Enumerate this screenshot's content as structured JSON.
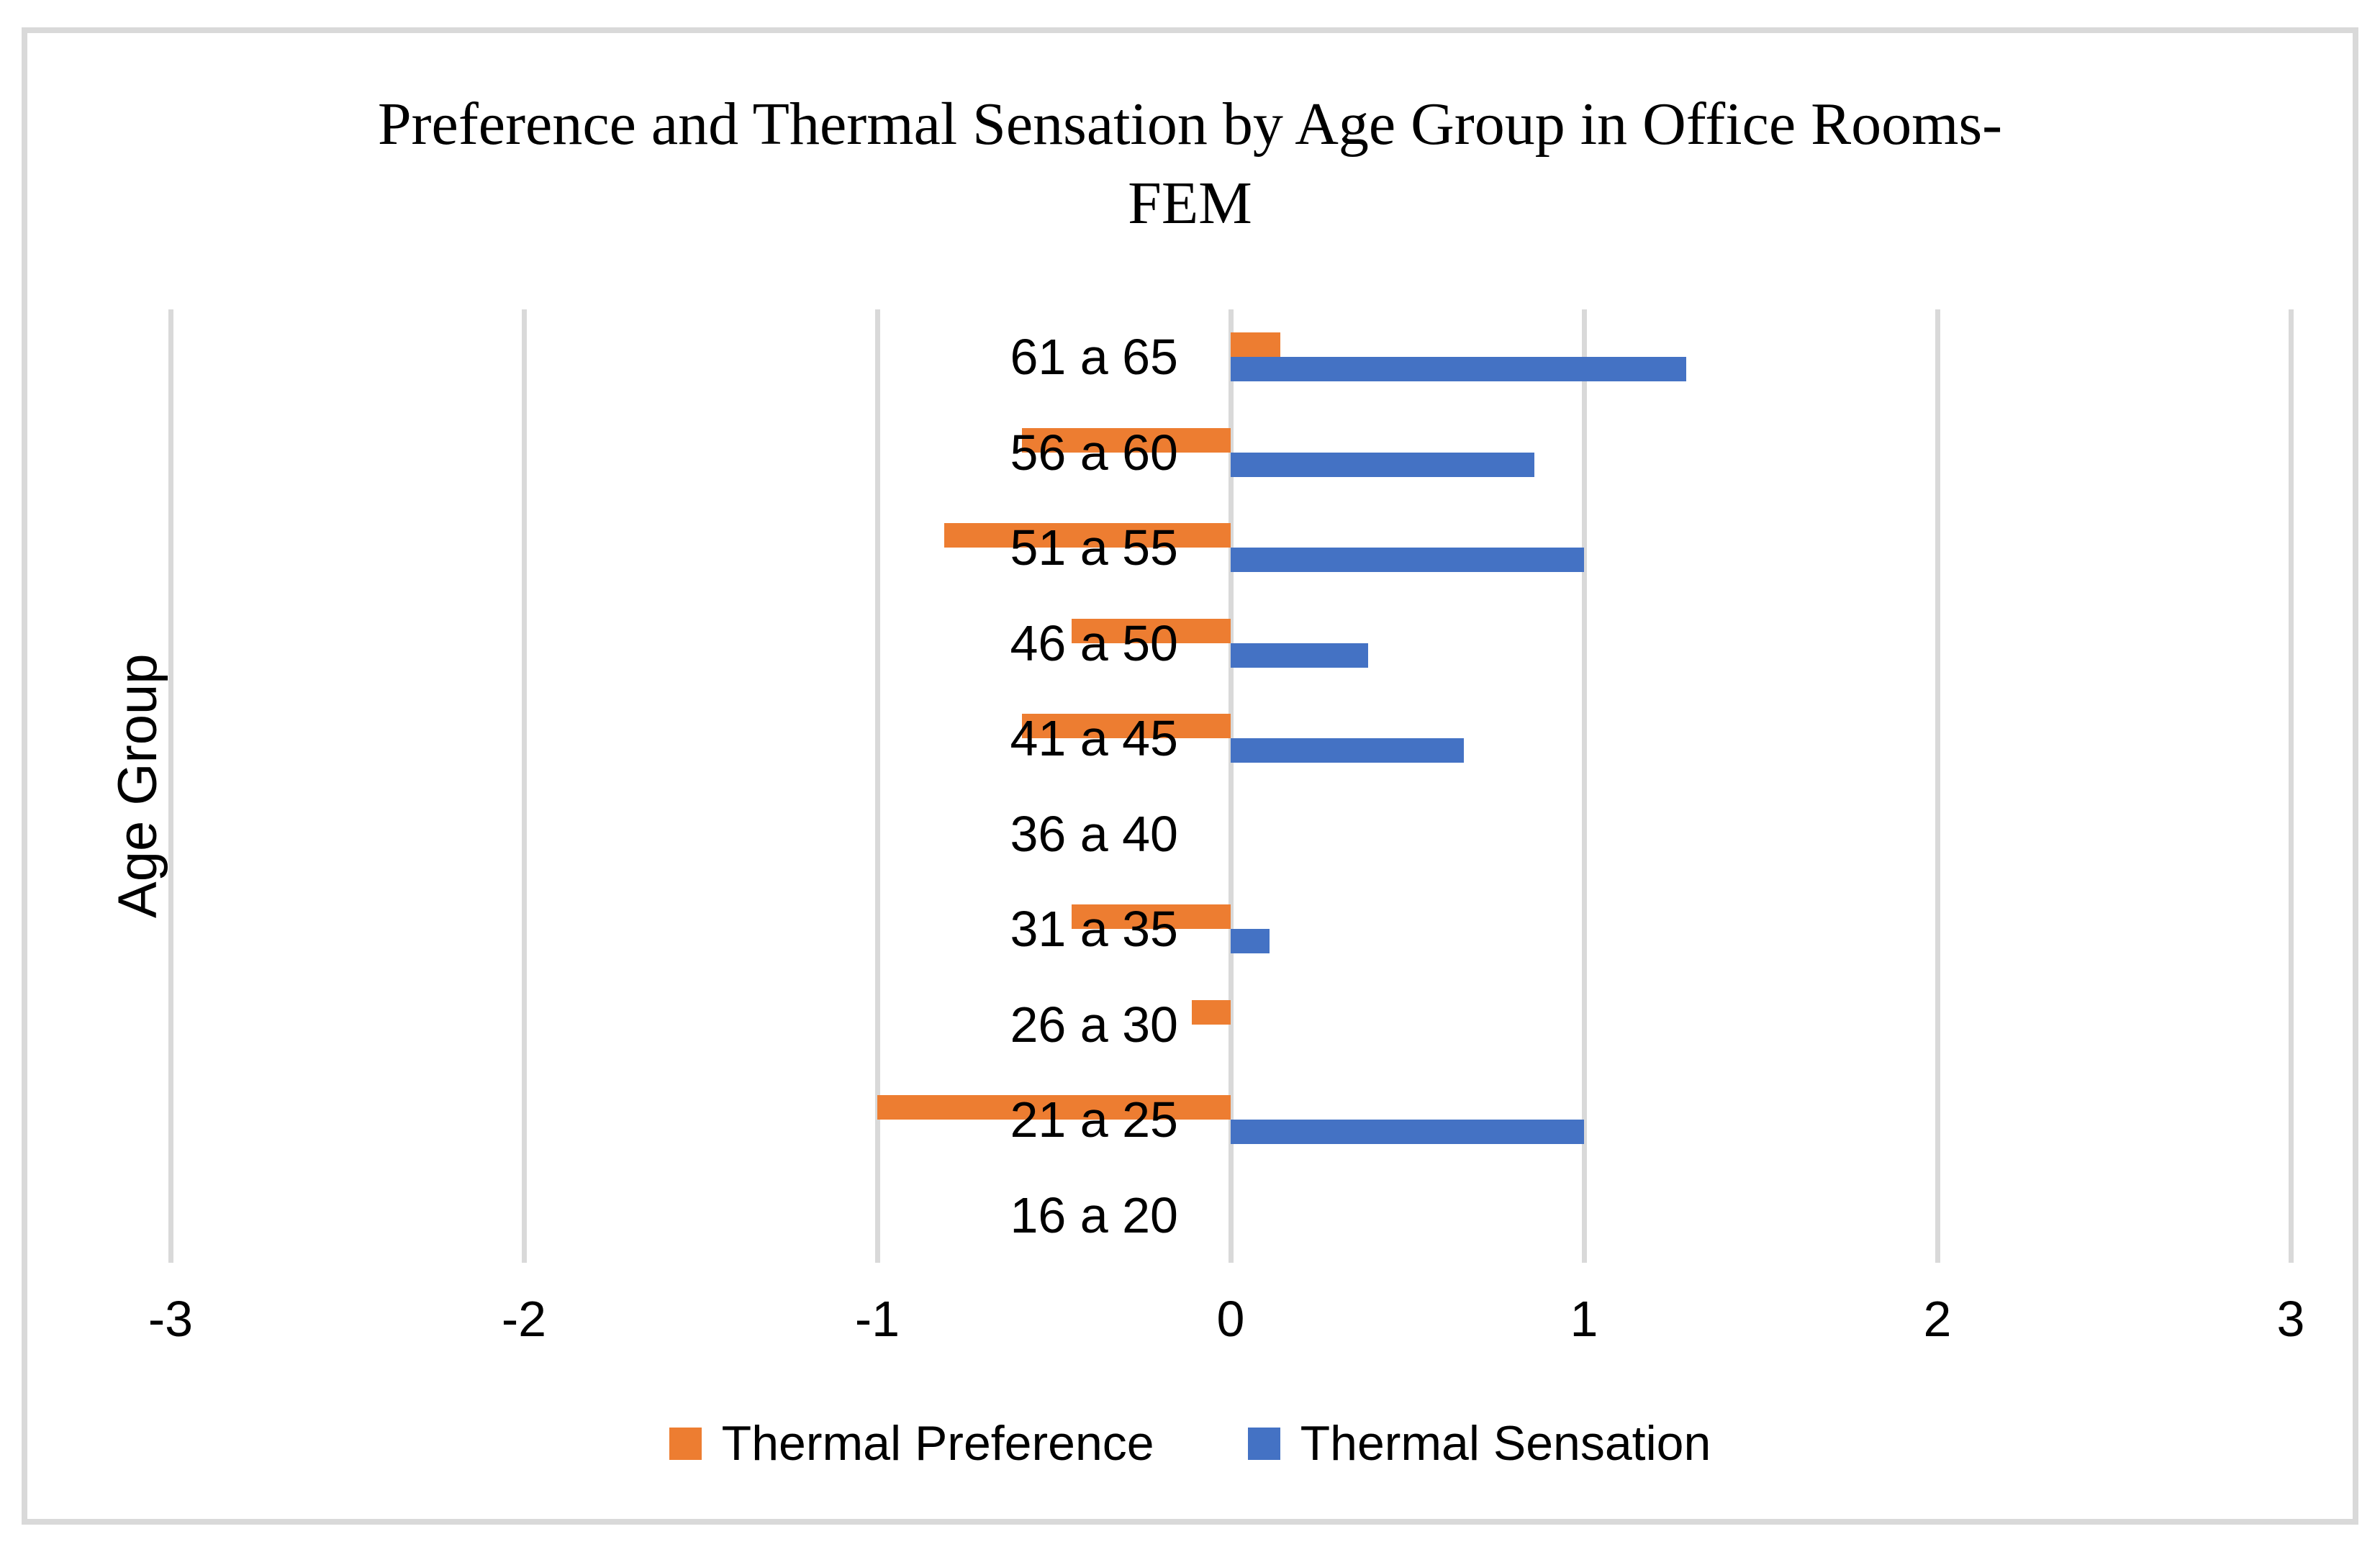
{
  "page": {
    "background": "#FFFFFF",
    "border_color": "#D9D9D9"
  },
  "chart_data": {
    "type": "bar",
    "orientation": "horizontal",
    "title": "Preference and Thermal Sensation by Age Group in Office Rooms-FEM",
    "title_lines": [
      "Preference and Thermal Sensation by Age Group in Office Rooms-",
      "FEM"
    ],
    "xlabel": "",
    "ylabel": "Age Group",
    "xlim": [
      -3,
      3
    ],
    "x_ticks": [
      -3,
      -2,
      -1,
      0,
      1,
      2,
      3
    ],
    "x_tick_labels": [
      "-3",
      "-2",
      "-1",
      "0",
      "1",
      "2",
      "3"
    ],
    "grid": true,
    "gridline_color": "#D9D9D9",
    "legend_position": "bottom",
    "categories": [
      "61 a 65",
      "56 a 60",
      "51 a 55",
      "46 a 50",
      "41 a 45",
      "36 a 40",
      "31 a 35",
      "26 a 30",
      "21 a 25",
      "16 a 20"
    ],
    "series": [
      {
        "name": "Thermal Preference",
        "color": "#ED7D31",
        "values": [
          0.14,
          -0.59,
          -0.81,
          -0.45,
          -0.59,
          0,
          -0.45,
          -0.11,
          -1.0,
          0
        ]
      },
      {
        "name": "Thermal Sensation",
        "color": "#4472C4",
        "values": [
          1.29,
          0.86,
          1.0,
          0.39,
          0.66,
          0,
          0.11,
          0,
          1.0,
          0
        ]
      }
    ]
  }
}
